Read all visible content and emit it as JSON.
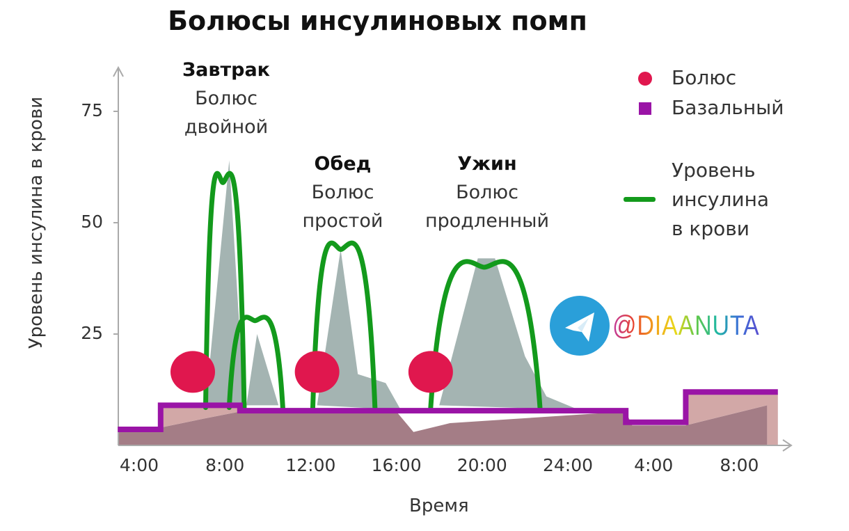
{
  "chart_data": {
    "type": "area",
    "title": "Болюсы инсулиновых помп",
    "xlabel": "Время",
    "ylabel": "Уровень инсулина в крови",
    "ylim": [
      0,
      80
    ],
    "xlim_hours": [
      3,
      34
    ],
    "y_ticks": [
      {
        "value": 25,
        "label": "25"
      },
      {
        "value": 50,
        "label": "50"
      },
      {
        "value": 75,
        "label": "75"
      }
    ],
    "x_ticks": [
      {
        "hour": 4,
        "label": "4:00"
      },
      {
        "hour": 8,
        "label": "8:00"
      },
      {
        "hour": 12,
        "label": "12:00"
      },
      {
        "hour": 16,
        "label": "16:00"
      },
      {
        "hour": 20,
        "label": "20:00"
      },
      {
        "hour": 24,
        "label": "24:00"
      },
      {
        "hour": 28,
        "label": "4:00"
      },
      {
        "hour": 32,
        "label": "8:00"
      }
    ],
    "basal": [
      [
        3,
        3.6
      ],
      [
        5,
        3.6
      ],
      [
        5,
        9
      ],
      [
        8.7,
        9
      ],
      [
        8.7,
        7.8
      ],
      [
        26.7,
        7.8
      ],
      [
        26.7,
        5.2
      ],
      [
        29.5,
        5.2
      ],
      [
        29.5,
        12
      ],
      [
        33.8,
        12
      ]
    ],
    "insulin_curves": [
      {
        "start": 7.1,
        "peak": 7.9,
        "end": 8.9,
        "value": 59
      },
      {
        "start": 8.2,
        "peak": 9.4,
        "end": 10.7,
        "value": 28
      },
      {
        "start": 12.1,
        "peak": 13.4,
        "end": 15.0,
        "value": 44
      },
      {
        "start": 17.6,
        "peak": 20.1,
        "end": 22.7,
        "value": 40
      }
    ],
    "curve_base": 8.5,
    "boluses": [
      {
        "hour": 6.5,
        "value": 16.5
      },
      {
        "hour": 12.3,
        "value": 16.5
      },
      {
        "hour": 17.6,
        "value": 16.5
      }
    ],
    "glucose_areas": [
      [
        [
          7.1,
          9
        ],
        [
          8.2,
          64
        ],
        [
          8.9,
          9
        ]
      ],
      [
        [
          9.0,
          9
        ],
        [
          9.5,
          25
        ],
        [
          10.5,
          9
        ]
      ],
      [
        [
          12.3,
          9
        ],
        [
          13.4,
          44
        ],
        [
          14.2,
          16
        ],
        [
          15.5,
          14
        ],
        [
          16.2,
          8
        ]
      ],
      [
        [
          18.0,
          9
        ],
        [
          19.8,
          42
        ],
        [
          20.6,
          42
        ],
        [
          22.0,
          20
        ],
        [
          23.0,
          11
        ],
        [
          24.5,
          8
        ]
      ]
    ],
    "base_area": [
      [
        3,
        0
      ],
      [
        3,
        3
      ],
      [
        5,
        4
      ],
      [
        7,
        6
      ],
      [
        8.7,
        7.6
      ],
      [
        16,
        7.6
      ],
      [
        16.8,
        3
      ],
      [
        18.5,
        5
      ],
      [
        26.7,
        7.6
      ],
      [
        27,
        4.5
      ],
      [
        29.5,
        4.5
      ],
      [
        33.3,
        9
      ],
      [
        33.3,
        0
      ]
    ],
    "pink_areas": [
      [
        [
          5,
          4
        ],
        [
          5,
          8.5
        ],
        [
          8.7,
          8.5
        ],
        [
          8.7,
          7.6
        ],
        [
          7,
          6
        ]
      ],
      [
        [
          29.5,
          4.5
        ],
        [
          29.5,
          11.5
        ],
        [
          33.8,
          11.5
        ],
        [
          33.8,
          0
        ],
        [
          33.3,
          0
        ],
        [
          33.3,
          9
        ]
      ]
    ],
    "annotations": [
      {
        "meal": "Завтрак",
        "lines": [
          "Болюс",
          "двойной"
        ]
      },
      {
        "meal": "Обед",
        "lines": [
          "Болюс",
          "простой"
        ]
      },
      {
        "meal": "Ужин",
        "lines": [
          "Болюс",
          "продленный"
        ]
      }
    ],
    "legend": [
      {
        "label": "Болюс",
        "marker": "circle",
        "color": "#e0174e"
      },
      {
        "label": "Базальный",
        "marker": "square",
        "color": "#9a14a6"
      },
      {
        "label": "Уровень инсулина в крови",
        "lines": [
          "Уровень",
          "инсулина",
          "в крови"
        ],
        "marker": "line",
        "color": "#139a1c"
      }
    ],
    "legend_position": "top-right",
    "colors": {
      "bolus": "#e0174e",
      "basal": "#9a14a6",
      "insulin": "#139a1c",
      "glucose": "#9aacaa",
      "base": "#a47d86",
      "pink": "#d2a8a7",
      "axis": "#aaaaaa"
    }
  },
  "watermark": {
    "text": "@DIAANUTA",
    "icon": "telegram-icon"
  }
}
